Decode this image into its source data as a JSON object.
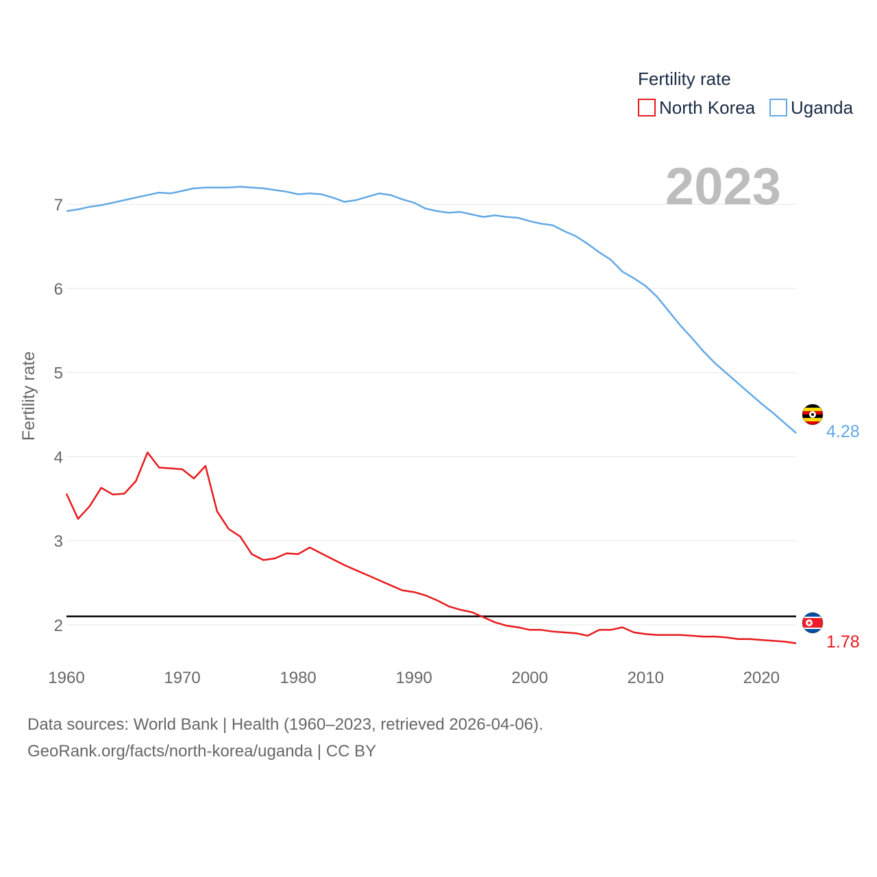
{
  "chart_data": {
    "type": "line",
    "title": "Fertility rate",
    "year_label": "2023",
    "ylabel": "Fertility rate",
    "xlabel": "",
    "xlim": [
      1960,
      2023
    ],
    "ylim": [
      1.25,
      7.45
    ],
    "yticks": [
      2,
      3,
      4,
      5,
      6,
      7
    ],
    "xticks": [
      1960,
      1970,
      1980,
      1990,
      2000,
      2010,
      2020
    ],
    "reference_line": 2.1,
    "grid": true,
    "legend_position": "top-right",
    "x": [
      1960,
      1961,
      1962,
      1963,
      1964,
      1965,
      1966,
      1967,
      1968,
      1969,
      1970,
      1971,
      1972,
      1973,
      1974,
      1975,
      1976,
      1977,
      1978,
      1979,
      1980,
      1981,
      1982,
      1983,
      1984,
      1985,
      1986,
      1987,
      1988,
      1989,
      1990,
      1991,
      1992,
      1993,
      1994,
      1995,
      1996,
      1997,
      1998,
      1999,
      2000,
      2001,
      2002,
      2003,
      2004,
      2005,
      2006,
      2007,
      2008,
      2009,
      2010,
      2011,
      2012,
      2013,
      2014,
      2015,
      2016,
      2017,
      2018,
      2019,
      2020,
      2021,
      2022,
      2023
    ],
    "series": [
      {
        "name": "North Korea",
        "color": "#e8191c",
        "end_label": "1.78",
        "flag": "north-korea-flag-icon",
        "values": [
          3.56,
          3.26,
          3.41,
          3.63,
          3.55,
          3.56,
          3.71,
          4.05,
          3.87,
          3.86,
          3.85,
          3.74,
          3.89,
          3.35,
          3.14,
          3.05,
          2.84,
          2.77,
          2.79,
          2.85,
          2.84,
          2.92,
          2.85,
          2.78,
          2.71,
          2.65,
          2.59,
          2.53,
          2.47,
          2.41,
          2.39,
          2.35,
          2.29,
          2.22,
          2.18,
          2.15,
          2.09,
          2.03,
          1.99,
          1.97,
          1.94,
          1.94,
          1.92,
          1.91,
          1.9,
          1.87,
          1.94,
          1.94,
          1.97,
          1.91,
          1.89,
          1.88,
          1.88,
          1.88,
          1.87,
          1.86,
          1.86,
          1.85,
          1.83,
          1.83,
          1.82,
          1.81,
          1.8,
          1.78
        ]
      },
      {
        "name": "Uganda",
        "color": "#62a8e5",
        "end_label": "4.28",
        "flag": "uganda-flag-icon",
        "values": [
          6.92,
          6.94,
          6.97,
          6.99,
          7.02,
          7.05,
          7.08,
          7.11,
          7.14,
          7.13,
          7.16,
          7.19,
          7.2,
          7.2,
          7.2,
          7.21,
          7.2,
          7.19,
          7.17,
          7.15,
          7.12,
          7.13,
          7.12,
          7.08,
          7.03,
          7.05,
          7.09,
          7.13,
          7.11,
          7.06,
          7.02,
          6.95,
          6.92,
          6.9,
          6.91,
          6.88,
          6.85,
          6.87,
          6.85,
          6.84,
          6.8,
          6.77,
          6.75,
          6.68,
          6.62,
          6.53,
          6.43,
          6.34,
          6.2,
          6.12,
          6.03,
          5.9,
          5.73,
          5.56,
          5.41,
          5.25,
          5.11,
          4.99,
          4.87,
          4.75,
          4.63,
          4.52,
          4.4,
          4.28
        ]
      }
    ]
  },
  "legend": {
    "title": "Fertility rate",
    "items": [
      "North Korea",
      "Uganda"
    ]
  },
  "footer": {
    "source_line": "Data sources: World Bank | Health (1960–2023, retrieved 2026-04-06).",
    "attribution_line": "GeoRank.org/facts/north-korea/uganda | CC BY"
  }
}
